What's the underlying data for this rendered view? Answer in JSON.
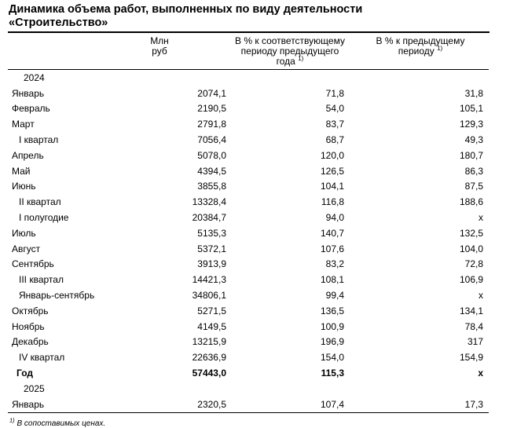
{
  "title": {
    "line1": "Динамика объема работ, выполненных по виду деятельности",
    "line2": "«Строительство»"
  },
  "table": {
    "headers": {
      "col_value": "Млн руб",
      "col_pct_yoy_line1": "В % к соответствующему",
      "col_pct_yoy_line2": "периоду предыдущего года",
      "col_pct_yoy_sup": "1)",
      "col_pct_prev_line1": "В % к предыдущему",
      "col_pct_prev_line2": "периоду",
      "col_pct_prev_sup": "1)"
    },
    "rows": [
      {
        "label": "2024",
        "type": "year",
        "bold": false,
        "values": [
          "",
          "",
          ""
        ]
      },
      {
        "label": "Январь",
        "type": "month",
        "bold": false,
        "values": [
          "2074,1",
          "71,8",
          "31,8"
        ]
      },
      {
        "label": "Февраль",
        "type": "month",
        "bold": false,
        "values": [
          "2190,5",
          "54,0",
          "105,1"
        ]
      },
      {
        "label": "Март",
        "type": "month",
        "bold": false,
        "values": [
          "2791,8",
          "83,7",
          "129,3"
        ]
      },
      {
        "label": "I квартал",
        "type": "quarter",
        "bold": false,
        "values": [
          "7056,4",
          "68,7",
          "49,3"
        ]
      },
      {
        "label": "Апрель",
        "type": "month",
        "bold": false,
        "values": [
          "5078,0",
          "120,0",
          "180,7"
        ]
      },
      {
        "label": "Май",
        "type": "month",
        "bold": false,
        "values": [
          "4394,5",
          "126,5",
          "86,3"
        ]
      },
      {
        "label": "Июнь",
        "type": "month",
        "bold": false,
        "values": [
          "3855,8",
          "104,1",
          "87,5"
        ]
      },
      {
        "label": "II квартал",
        "type": "quarter",
        "bold": false,
        "values": [
          "13328,4",
          "116,8",
          "188,6"
        ]
      },
      {
        "label": "I полугодие",
        "type": "quarter",
        "bold": false,
        "values": [
          "20384,7",
          "94,0",
          "x"
        ]
      },
      {
        "label": "Июль",
        "type": "month",
        "bold": false,
        "values": [
          "5135,3",
          "140,7",
          "132,5"
        ]
      },
      {
        "label": "Август",
        "type": "month",
        "bold": false,
        "values": [
          "5372,1",
          "107,6",
          "104,0"
        ]
      },
      {
        "label": "Сентябрь",
        "type": "month",
        "bold": false,
        "values": [
          "3913,9",
          "83,2",
          "72,8"
        ]
      },
      {
        "label": "III квартал",
        "type": "quarter",
        "bold": false,
        "values": [
          "14421,3",
          "108,1",
          "106,9"
        ]
      },
      {
        "label": "Январь-сентябрь",
        "type": "quarter",
        "bold": false,
        "values": [
          "34806,1",
          "99,4",
          "x"
        ]
      },
      {
        "label": "Октябрь",
        "type": "month",
        "bold": false,
        "values": [
          "5271,5",
          "136,5",
          "134,1"
        ]
      },
      {
        "label": "Ноябрь",
        "type": "month",
        "bold": false,
        "values": [
          "4149,5",
          "100,9",
          "78,4"
        ]
      },
      {
        "label": "Декабрь",
        "type": "month",
        "bold": false,
        "values": [
          "13215,9",
          "196,9",
          "317"
        ]
      },
      {
        "label": "IV квартал",
        "type": "quarter",
        "bold": false,
        "values": [
          "22636,9",
          "154,0",
          "154,9"
        ]
      },
      {
        "label": "Год",
        "type": "total",
        "bold": true,
        "values": [
          "57443,0",
          "115,3",
          "x"
        ]
      },
      {
        "label": "2025",
        "type": "year",
        "bold": false,
        "values": [
          "",
          "",
          ""
        ]
      },
      {
        "label": "Январь",
        "type": "month",
        "bold": false,
        "values": [
          "2320,5",
          "107,4",
          "17,3"
        ]
      }
    ]
  },
  "footnote": {
    "sup": "1)",
    "text": "В сопоставимых ценах."
  }
}
